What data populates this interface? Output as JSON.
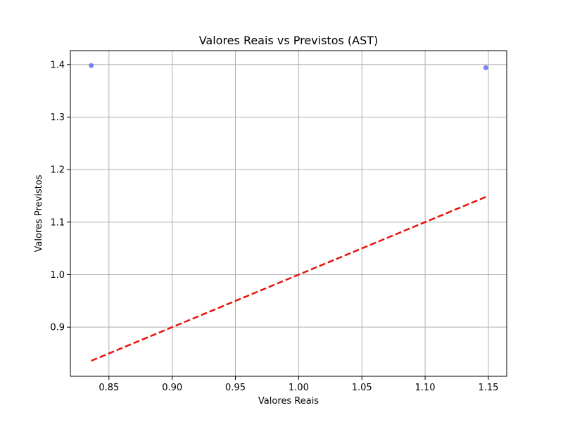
{
  "chart_data": {
    "type": "scatter",
    "title": "Valores Reais vs Previstos (AST)",
    "xlabel": "Valores Reais",
    "ylabel": "Valores Previstos",
    "xlim": [
      0.8195,
      1.1645
    ],
    "ylim": [
      0.8065,
      1.4265
    ],
    "xticks": [
      0.85,
      0.9,
      0.95,
      1.0,
      1.05,
      1.1,
      1.15
    ],
    "xtick_labels": [
      "0.85",
      "0.90",
      "0.95",
      "1.00",
      "1.05",
      "1.10",
      "1.15"
    ],
    "yticks": [
      0.9,
      1.0,
      1.1,
      1.2,
      1.3,
      1.4
    ],
    "ytick_labels": [
      "0.9",
      "1.0",
      "1.1",
      "1.2",
      "1.3",
      "1.4"
    ],
    "grid": true,
    "series": [
      {
        "type": "scatter",
        "color": "#6b73f0",
        "x": [
          0.836,
          1.148
        ],
        "y": [
          1.398,
          1.394
        ]
      },
      {
        "type": "line",
        "style": "dashed",
        "color": "#e8120c",
        "x": [
          0.836,
          1.148
        ],
        "y": [
          0.836,
          1.148
        ]
      }
    ]
  }
}
